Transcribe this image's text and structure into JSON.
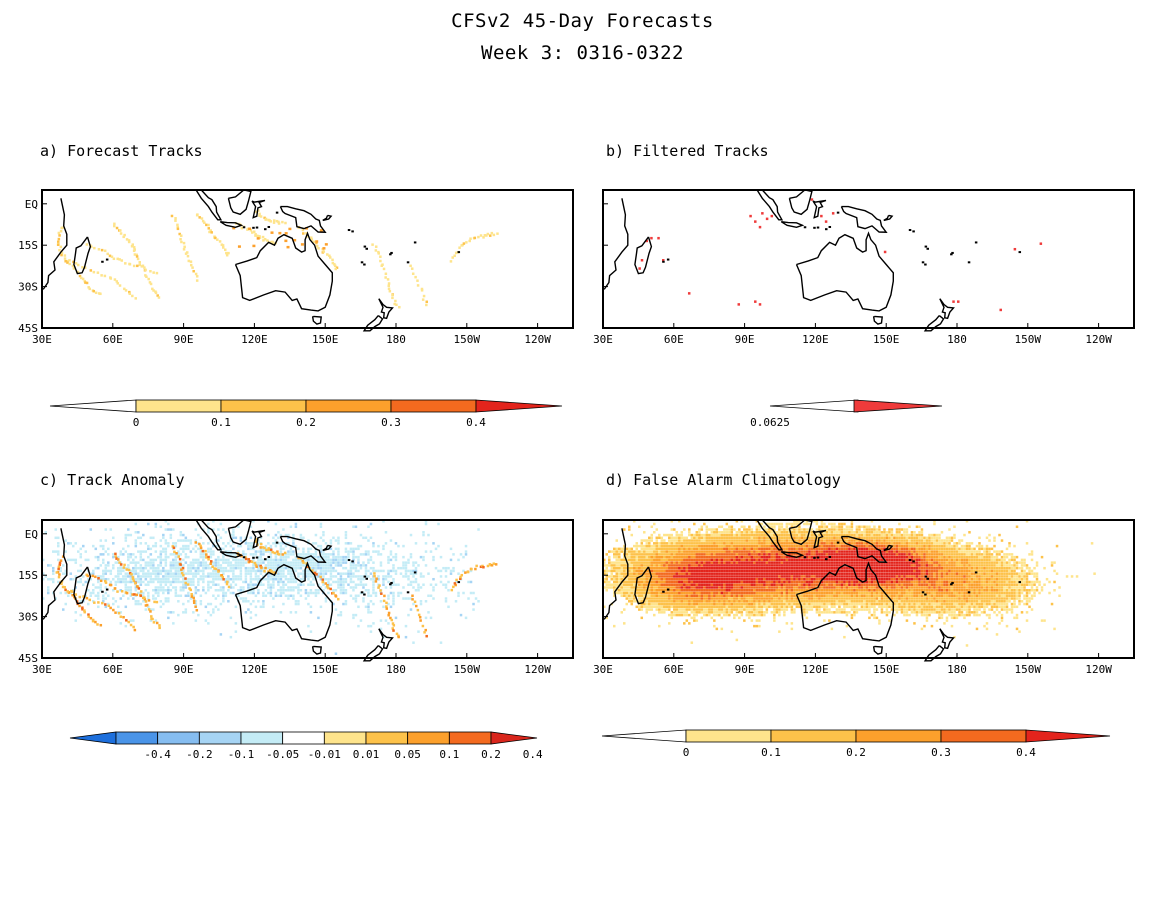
{
  "title": "CFSv2 45-Day Forecasts",
  "subtitle": "Week 3: 0316-0322",
  "map_axes": {
    "lon_labels": [
      "30E",
      "60E",
      "90E",
      "120E",
      "150E",
      "180",
      "150W",
      "120W"
    ],
    "lon_values": [
      30,
      60,
      90,
      120,
      150,
      180,
      210,
      240
    ],
    "lat_labels": [
      "EQ",
      "15S",
      "30S",
      "45S"
    ],
    "lat_values": [
      0,
      -15,
      -30,
      -45
    ],
    "lon_range": [
      30,
      255
    ],
    "lat_range": [
      -45,
      5
    ]
  },
  "panels": [
    {
      "id": "a",
      "label": "a) Forecast Tracks",
      "fill": "tracks"
    },
    {
      "id": "b",
      "label": "b) Filtered Tracks",
      "fill": "filtered"
    },
    {
      "id": "c",
      "label": "c) Track Anomaly",
      "fill": "anomaly"
    },
    {
      "id": "d",
      "label": "d) False Alarm Climatology",
      "fill": "climatology"
    }
  ],
  "colorbars": {
    "a": {
      "labels": [
        "0",
        "0.1",
        "0.2",
        "0.3",
        "0.4"
      ],
      "colors": [
        "#ffffff",
        "#fee48c",
        "#fdc24a",
        "#fca02c",
        "#f36a1f",
        "#e3241c"
      ]
    },
    "b": {
      "labels": [
        "0.0625"
      ],
      "colors": [
        "#ffffff",
        "#ef3b3b"
      ]
    },
    "c": {
      "labels": [
        "-0.4",
        "-0.2",
        "-0.1",
        "-0.05",
        "-0.01",
        "0.01",
        "0.05",
        "0.1",
        "0.2",
        "0.4"
      ],
      "colors": [
        "#1d6fdc",
        "#4a94e8",
        "#86bdf0",
        "#a6d4f4",
        "#c4ecf6",
        "#ffffff",
        "#fee48c",
        "#fdc24a",
        "#fca02c",
        "#f36a1f",
        "#d9261c"
      ]
    },
    "d": {
      "labels": [
        "0",
        "0.1",
        "0.2",
        "0.3",
        "0.4"
      ],
      "colors": [
        "#ffffff",
        "#fee48c",
        "#fdc24a",
        "#fca02c",
        "#f36a1f",
        "#e3241c"
      ]
    }
  }
}
